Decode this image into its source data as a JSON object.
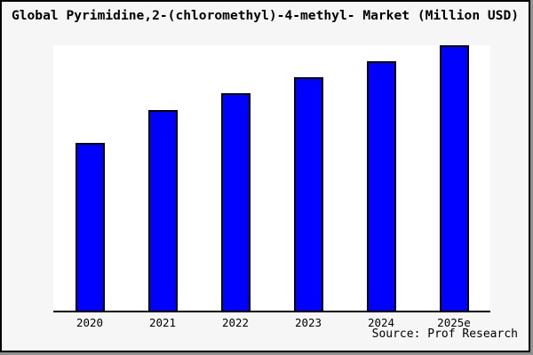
{
  "chart": {
    "title": "Global Pyrimidine,2-(chloromethyl)-4-methyl- Market (Million USD)",
    "source": "Source: Prof Research"
  },
  "chart_data": {
    "type": "bar",
    "title": "Global Pyrimidine,2-(chloromethyl)-4-methyl- Market (Million USD)",
    "categories": [
      "2020",
      "2021",
      "2022",
      "2023",
      "2024",
      "2025e"
    ],
    "values": [
      63,
      75.4,
      81.7,
      87.9,
      93.9,
      100
    ],
    "values_note": "relative scale, max bar = 100; no y-axis ticks or value labels are shown in the image",
    "xlabel": "",
    "ylabel": "",
    "ylim": [
      0,
      100.5
    ],
    "grid": false,
    "legend": "none",
    "y_axis_visible": false,
    "colors": {
      "bar_fill": "#0000ff",
      "bar_border": "#000000",
      "plot_background": "#ffffff",
      "canvas_background": "#f6f6f6",
      "frame_border": "#000000",
      "frame_shadow": "#909090",
      "text": "#000000"
    }
  }
}
